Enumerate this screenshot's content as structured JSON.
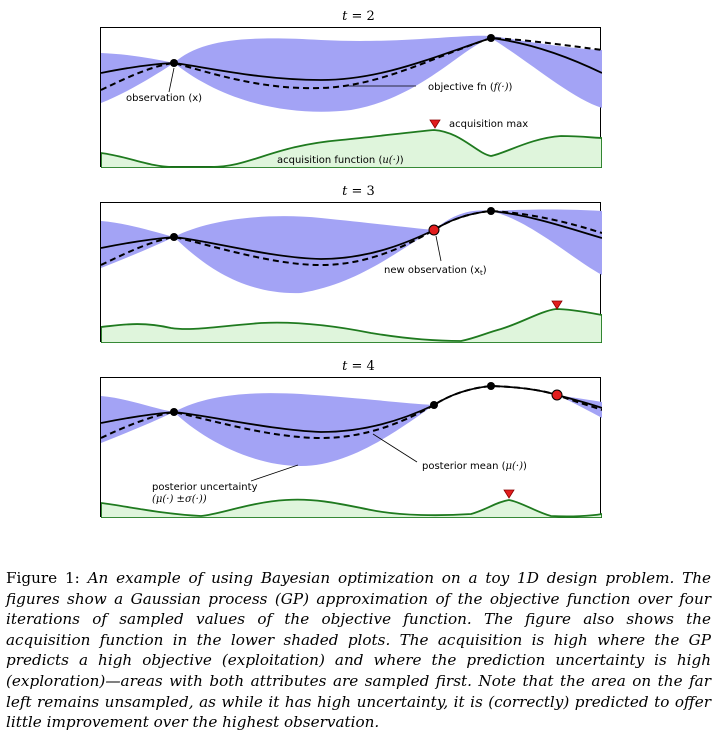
{
  "panels": [
    {
      "title_var": "t",
      "title_value": "= 2"
    },
    {
      "title_var": "t",
      "title_value": "= 3"
    },
    {
      "title_var": "t",
      "title_value": "= 4"
    }
  ],
  "annotations": {
    "observation": "observation (x)",
    "objective_fn": "objective fn (",
    "objective_fn_math": "f(·)",
    "objective_fn_close": ")",
    "acquisition_max": "acquisition max",
    "acquisition_function": "acquisition function (",
    "acquisition_function_math": "u(·)",
    "acquisition_function_close": ")",
    "new_observation": "new observation (x",
    "new_observation_sub": "t",
    "new_observation_close": ")",
    "posterior_uncertainty": "posterior uncertainty",
    "posterior_uncertainty_math": "(μ(·) ±σ(·))",
    "posterior_mean": "posterior mean (",
    "posterior_mean_math": "μ(·)",
    "posterior_mean_close": ")"
  },
  "colors": {
    "uncertainty_fill": "#a3a3f5",
    "acquisition_fill": "#dff5dc",
    "acquisition_line": "#1f7a1f",
    "new_point": "#e21d1d",
    "max_marker": "#e21d1d"
  },
  "caption": {
    "figure_label": "Figure 1:",
    "text": "An example of using Bayesian optimization on a toy 1D design problem. The figures show a Gaussian process (GP) approximation of the objective function over four iterations of sampled values of the objective function. The figure also shows the acquisition function in the lower shaded plots. The acquisition is high where the GP predicts a high objective (exploitation) and where the prediction uncertainty is high (exploration)—areas with both attributes are sampled first. Note that the area on the far left remains unsampled, as while it has high uncertainty, it is (correctly) predicted to offer little improvement over the highest observation."
  }
}
